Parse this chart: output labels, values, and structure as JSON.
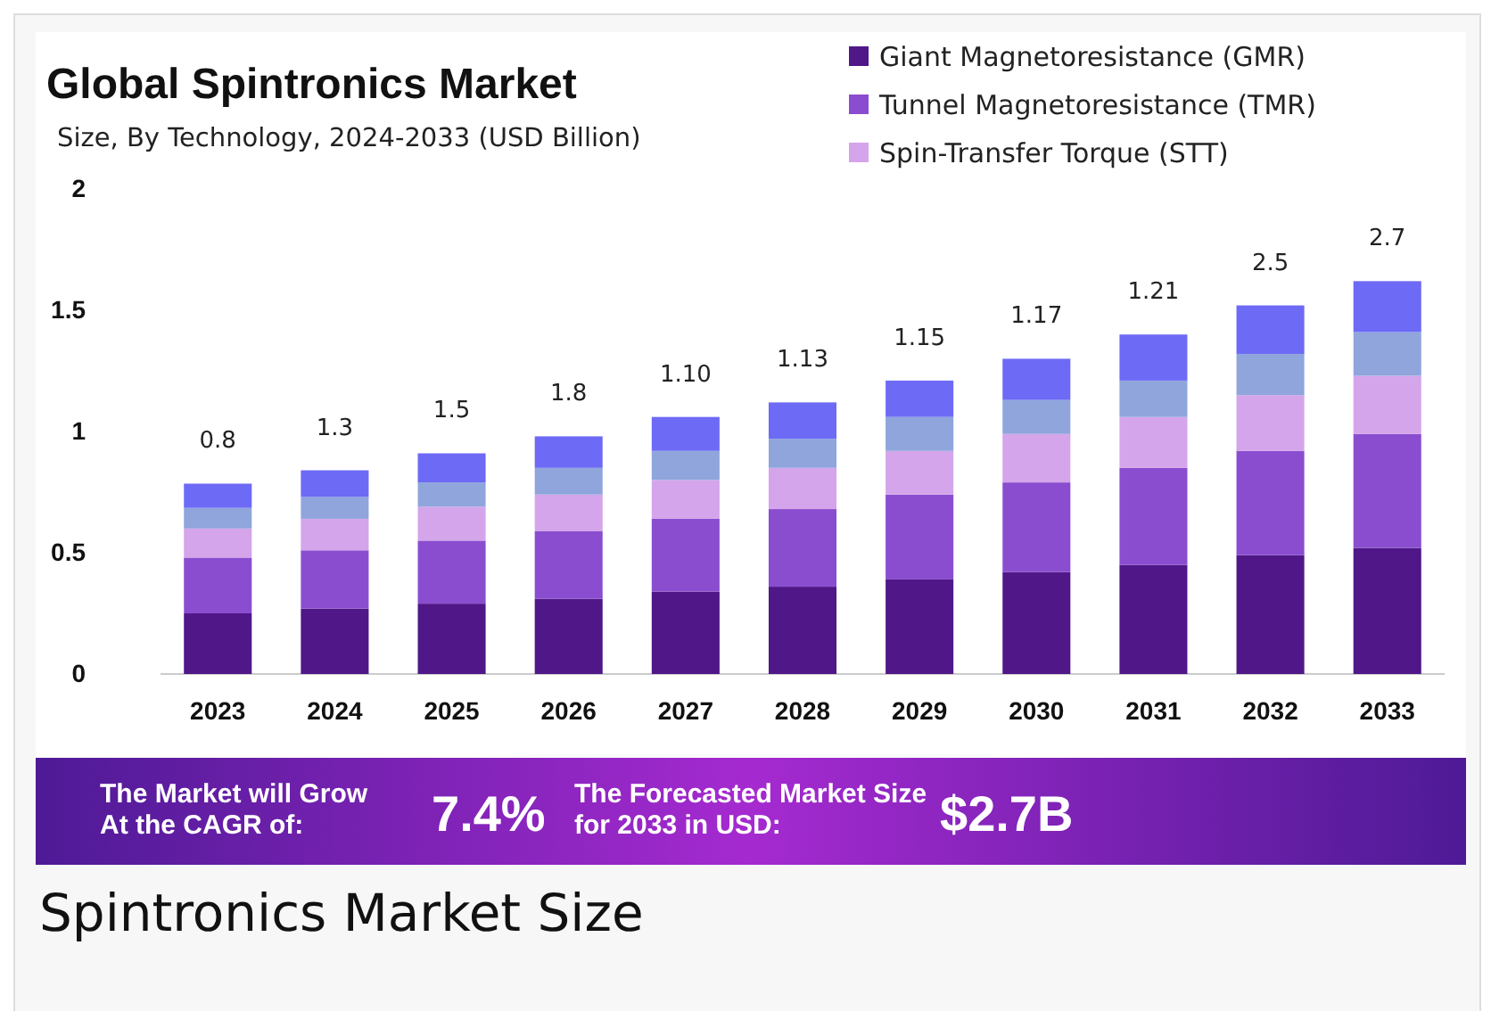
{
  "chart_data": {
    "type": "bar",
    "stacked": true,
    "title": "Global Spintronics Market",
    "subtitle": "Size, By Technology, 2024-2033 (USD Billion)",
    "categories": [
      "2023",
      "2024",
      "2025",
      "2026",
      "2027",
      "2028",
      "2029",
      "2030",
      "2031",
      "2032",
      "2033"
    ],
    "series": [
      {
        "name": "Giant Magnetoresistance (GMR)",
        "color": "#4f1787",
        "values": [
          0.25,
          0.27,
          0.29,
          0.31,
          0.34,
          0.36,
          0.39,
          0.42,
          0.45,
          0.49,
          0.52
        ]
      },
      {
        "name": "Tunnel Magnetoresistance (TMR)",
        "color": "#8a4dcf",
        "values": [
          0.23,
          0.24,
          0.26,
          0.28,
          0.3,
          0.32,
          0.35,
          0.37,
          0.4,
          0.43,
          0.47
        ]
      },
      {
        "name": "Spin-Transfer Torque (STT)",
        "color": "#d4a5ea",
        "values": [
          0.12,
          0.13,
          0.14,
          0.15,
          0.16,
          0.17,
          0.18,
          0.2,
          0.21,
          0.23,
          0.24
        ]
      },
      {
        "color": "#8fa5dc",
        "values": [
          0.085,
          0.09,
          0.1,
          0.11,
          0.12,
          0.12,
          0.14,
          0.14,
          0.15,
          0.17,
          0.18
        ]
      },
      {
        "color": "#6d6af5",
        "values": [
          0.1,
          0.11,
          0.12,
          0.13,
          0.14,
          0.15,
          0.15,
          0.17,
          0.19,
          0.2,
          0.21
        ]
      }
    ],
    "ylim": [
      0,
      2
    ],
    "yticks": [
      0,
      0.5,
      1,
      1.5,
      2
    ],
    "grid": false,
    "legend": "top right",
    "annotations": [
      {
        "text": "0.8",
        "x": "2023",
        "y": 0.785
      },
      {
        "text": "1.3",
        "x": "2024",
        "y": 0.84
      },
      {
        "text": "1.5",
        "x": "2025",
        "y": 0.91
      },
      {
        "text": "1.8",
        "x": "2026",
        "y": 0.98
      },
      {
        "text": "1.10",
        "x": "2027",
        "y": 1.06
      },
      {
        "text": "1.13",
        "x": "2028",
        "y": 1.12
      },
      {
        "text": "1.15",
        "x": "2029",
        "y": 1.21
      },
      {
        "text": "1.17",
        "x": "2030",
        "y": 1.3
      },
      {
        "text": "1.21",
        "x": "2031",
        "y": 1.4
      },
      {
        "text": "2.5",
        "x": "2032",
        "y": 1.52
      },
      {
        "text": "2.7",
        "x": "2033",
        "y": 1.62
      },
      "The Market will Grow At the CAGR of:",
      "7.4%",
      "The Forecasted Market Size for 2033 in USD:",
      "$2.7B",
      "Spintronics Market Size"
    ]
  }
}
